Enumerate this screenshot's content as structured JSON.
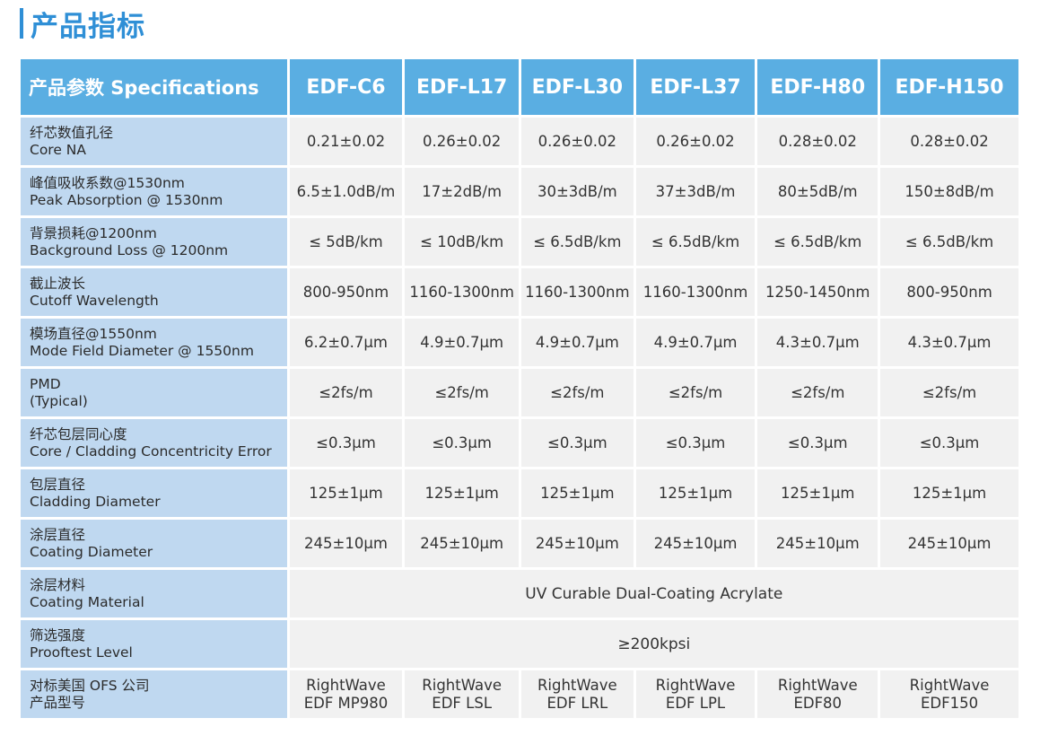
{
  "title": "产品指标",
  "table": {
    "param_header": "产品参数 Specifications",
    "models": [
      "EDF-C6",
      "EDF-L17",
      "EDF-L30",
      "EDF-L37",
      "EDF-H80",
      "EDF-H150"
    ],
    "rows": [
      {
        "zh": "纤芯数值孔径",
        "en": "Core  NA",
        "values": [
          "0.21±0.02",
          "0.26±0.02",
          "0.26±0.02",
          "0.26±0.02",
          "0.28±0.02",
          "0.28±0.02"
        ]
      },
      {
        "zh": "峰值吸收系数@1530nm",
        "en": "Peak  Absorption @ 1530nm",
        "values": [
          "6.5±1.0dB/m",
          "17±2dB/m",
          "30±3dB/m",
          "37±3dB/m",
          "80±5dB/m",
          "150±8dB/m"
        ]
      },
      {
        "zh": "背景损耗@1200nm",
        "en": "Background  Loss @ 1200nm",
        "values": [
          "≤ 5dB/km",
          "≤ 10dB/km",
          "≤ 6.5dB/km",
          "≤ 6.5dB/km",
          "≤ 6.5dB/km",
          "≤ 6.5dB/km"
        ]
      },
      {
        "zh": "截止波长",
        "en": "Cutoff  Wavelength",
        "values": [
          "800-950nm",
          "1160-1300nm",
          "1160-1300nm",
          "1160-1300nm",
          "1250-1450nm",
          "800-950nm"
        ]
      },
      {
        "zh": "模场直径@1550nm",
        "en": "Mode  Field  Diameter @ 1550nm",
        "values": [
          "6.2±0.7μm",
          "4.9±0.7μm",
          "4.9±0.7μm",
          "4.9±0.7μm",
          "4.3±0.7μm",
          "4.3±0.7μm"
        ]
      },
      {
        "zh": "PMD",
        "en": "(Typical)",
        "values": [
          "≤2fs/m",
          "≤2fs/m",
          "≤2fs/m",
          "≤2fs/m",
          "≤2fs/m",
          "≤2fs/m"
        ]
      },
      {
        "zh": "纤芯包层同心度",
        "en": "Core / Cladding  Concentricity  Error",
        "values": [
          "≤0.3μm",
          "≤0.3μm",
          "≤0.3μm",
          "≤0.3μm",
          "≤0.3μm",
          "≤0.3μm"
        ]
      },
      {
        "zh": "包层直径",
        "en": "Cladding  Diameter",
        "values": [
          "125±1μm",
          "125±1μm",
          "125±1μm",
          "125±1μm",
          "125±1μm",
          "125±1μm"
        ]
      },
      {
        "zh": "涂层直径",
        "en": "Coating  Diameter",
        "values": [
          "245±10μm",
          "245±10μm",
          "245±10μm",
          "245±10μm",
          "245±10μm",
          "245±10μm"
        ]
      }
    ],
    "coating_material": {
      "zh": "涂层材料",
      "en": "Coating  Material",
      "value": "UV Curable Dual-Coating Acrylate"
    },
    "prooftest": {
      "zh": "筛选强度",
      "en": "Prooftest  Level",
      "value": "≥200kpsi"
    },
    "ofs": {
      "zh1": "对标美国 OFS 公司",
      "zh2": "产品型号",
      "values": [
        [
          "RightWave",
          "EDF MP980"
        ],
        [
          "RightWave",
          "EDF LSL"
        ],
        [
          "RightWave",
          "EDF LRL"
        ],
        [
          "RightWave",
          "EDF LPL"
        ],
        [
          "RightWave",
          "EDF80"
        ],
        [
          "RightWave",
          "EDF150"
        ]
      ]
    }
  }
}
